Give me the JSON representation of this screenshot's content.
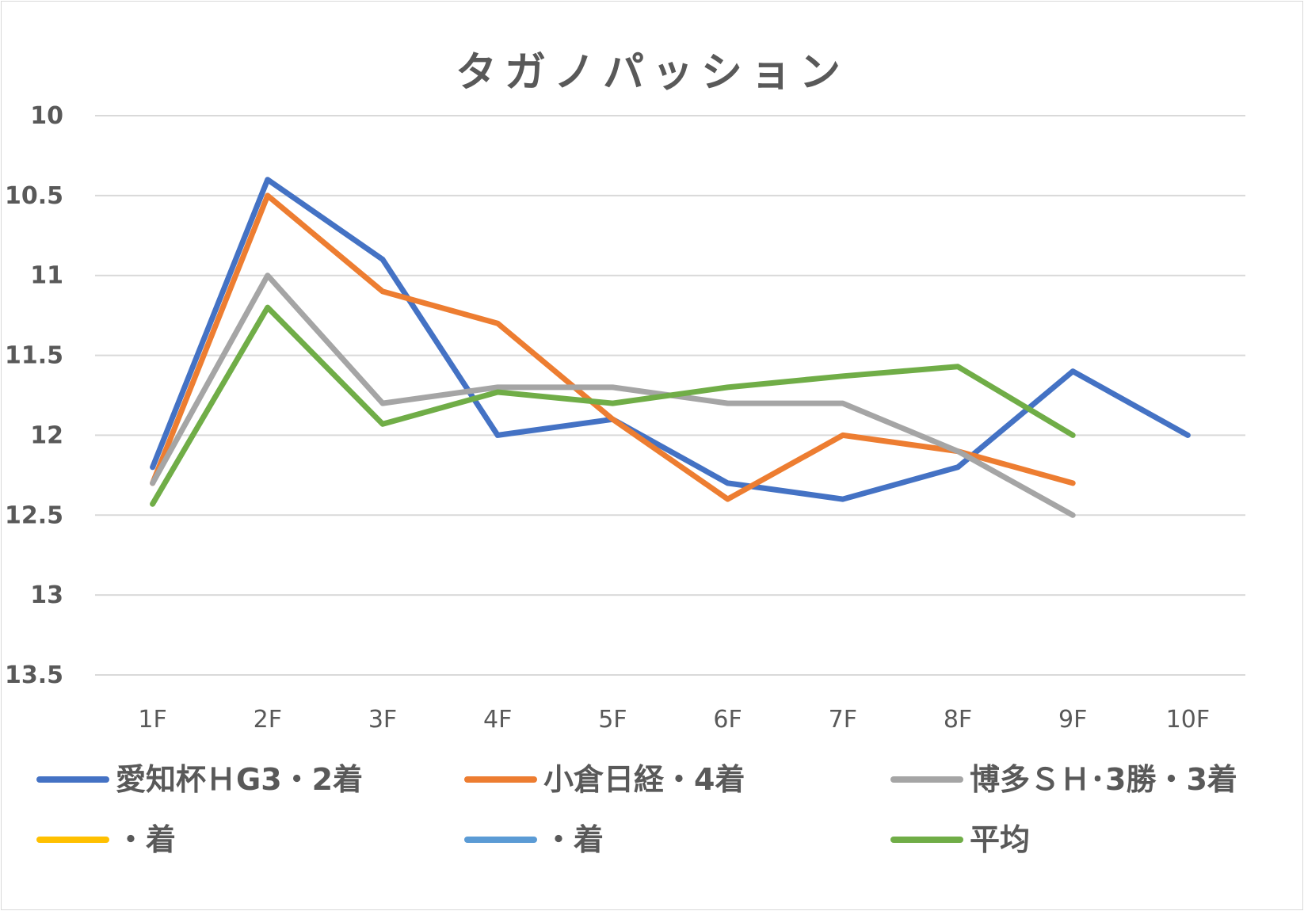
{
  "chart_data": {
    "type": "line",
    "title": "タガノパッション",
    "categories": [
      "1F",
      "2F",
      "3F",
      "4F",
      "5F",
      "6F",
      "7F",
      "8F",
      "9F",
      "10F"
    ],
    "ylim": [
      10,
      13.5
    ],
    "y_reversed": true,
    "yticks": [
      "10",
      "10.5",
      "11",
      "11.5",
      "12",
      "12.5",
      "13",
      "13.5"
    ],
    "grid": true,
    "legend_position": "bottom",
    "series": [
      {
        "name": "愛知杯ＨG3・2着",
        "color": "#4472C4",
        "values": [
          12.2,
          10.4,
          10.9,
          12.0,
          11.9,
          12.3,
          12.4,
          12.2,
          11.6,
          12.0
        ]
      },
      {
        "name": "小倉日経・4着",
        "color": "#ED7D31",
        "values": [
          12.3,
          10.5,
          11.1,
          11.3,
          11.9,
          12.4,
          12.0,
          12.1,
          12.3,
          null
        ]
      },
      {
        "name": "博多ＳＨ･3勝・3着",
        "color": "#A5A5A5",
        "values": [
          12.3,
          11.0,
          11.8,
          11.7,
          11.7,
          11.8,
          11.8,
          12.1,
          12.5,
          null
        ]
      },
      {
        "name": "・着",
        "color": "#FFC000",
        "values": [
          null,
          null,
          null,
          null,
          null,
          null,
          null,
          null,
          null,
          null
        ]
      },
      {
        "name": "・着",
        "color": "#5B9BD5",
        "values": [
          null,
          null,
          null,
          null,
          null,
          null,
          null,
          null,
          null,
          null
        ]
      },
      {
        "name": "平均",
        "color": "#70AD47",
        "values": [
          12.43,
          11.2,
          11.93,
          11.73,
          11.8,
          11.7,
          11.63,
          11.57,
          12.0,
          null
        ]
      }
    ]
  }
}
